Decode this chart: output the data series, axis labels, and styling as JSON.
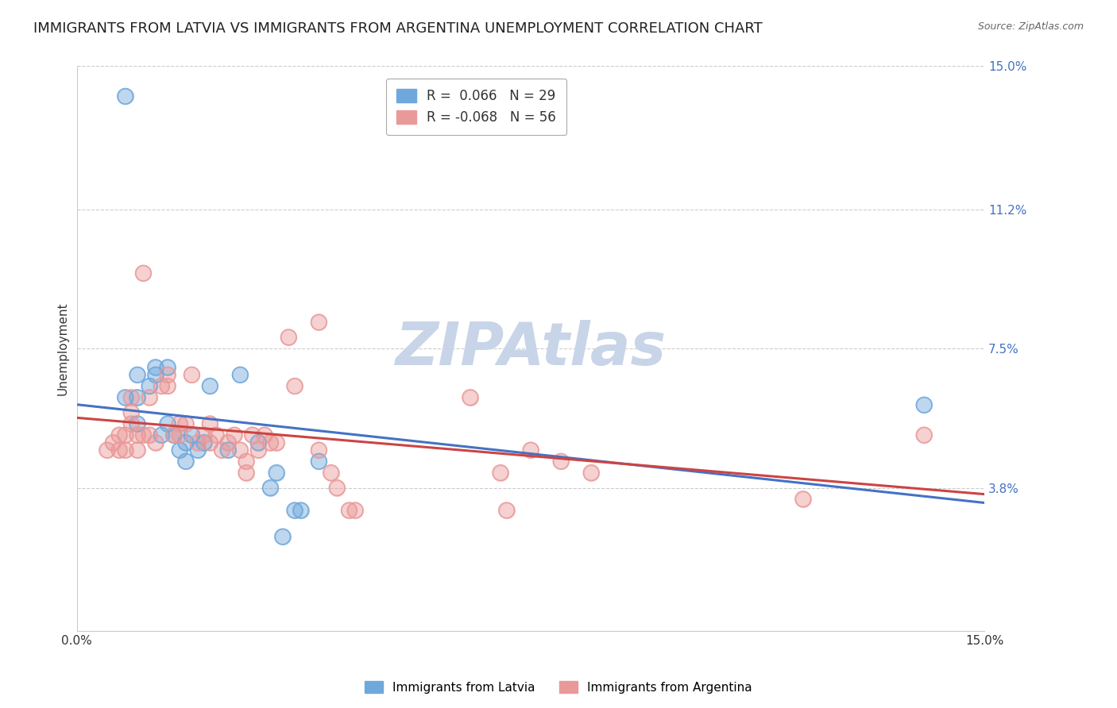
{
  "title": "IMMIGRANTS FROM LATVIA VS IMMIGRANTS FROM ARGENTINA UNEMPLOYMENT CORRELATION CHART",
  "source": "Source: ZipAtlas.com",
  "xlabel": "",
  "ylabel": "Unemployment",
  "xlim": [
    0.0,
    0.15
  ],
  "ylim": [
    0.0,
    0.15
  ],
  "ytick_values": [
    0.0,
    0.038,
    0.075,
    0.112,
    0.15
  ],
  "xtick_values": [
    0.0,
    0.15
  ],
  "right_ytick_values": [
    0.15,
    0.112,
    0.075,
    0.038
  ],
  "right_ytick_labels": [
    "15.0%",
    "11.2%",
    "7.5%",
    "3.8%"
  ],
  "latvia_color": "#6fa8dc",
  "argentina_color": "#ea9999",
  "latvia_line_color": "#4472c4",
  "argentina_line_color": "#cc4444",
  "watermark_color": "#c8d4e8",
  "background_color": "#ffffff",
  "grid_color": "#cccccc",
  "title_fontsize": 13,
  "axis_label_fontsize": 11,
  "tick_fontsize": 11,
  "right_tick_color": "#4472c4",
  "latvia_scatter": [
    [
      0.008,
      0.142
    ],
    [
      0.008,
      0.062
    ],
    [
      0.01,
      0.062
    ],
    [
      0.01,
      0.055
    ],
    [
      0.01,
      0.068
    ],
    [
      0.012,
      0.065
    ],
    [
      0.013,
      0.068
    ],
    [
      0.013,
      0.07
    ],
    [
      0.014,
      0.052
    ],
    [
      0.015,
      0.055
    ],
    [
      0.015,
      0.07
    ],
    [
      0.016,
      0.052
    ],
    [
      0.017,
      0.048
    ],
    [
      0.018,
      0.05
    ],
    [
      0.018,
      0.045
    ],
    [
      0.019,
      0.052
    ],
    [
      0.02,
      0.048
    ],
    [
      0.021,
      0.05
    ],
    [
      0.022,
      0.065
    ],
    [
      0.025,
      0.048
    ],
    [
      0.027,
      0.068
    ],
    [
      0.03,
      0.05
    ],
    [
      0.032,
      0.038
    ],
    [
      0.033,
      0.042
    ],
    [
      0.034,
      0.025
    ],
    [
      0.036,
      0.032
    ],
    [
      0.037,
      0.032
    ],
    [
      0.04,
      0.045
    ],
    [
      0.14,
      0.06
    ]
  ],
  "argentina_scatter": [
    [
      0.005,
      0.048
    ],
    [
      0.006,
      0.05
    ],
    [
      0.007,
      0.048
    ],
    [
      0.007,
      0.052
    ],
    [
      0.008,
      0.048
    ],
    [
      0.008,
      0.052
    ],
    [
      0.009,
      0.055
    ],
    [
      0.009,
      0.058
    ],
    [
      0.009,
      0.062
    ],
    [
      0.01,
      0.048
    ],
    [
      0.01,
      0.052
    ],
    [
      0.011,
      0.095
    ],
    [
      0.011,
      0.052
    ],
    [
      0.012,
      0.052
    ],
    [
      0.012,
      0.062
    ],
    [
      0.013,
      0.05
    ],
    [
      0.014,
      0.065
    ],
    [
      0.015,
      0.065
    ],
    [
      0.015,
      0.068
    ],
    [
      0.016,
      0.052
    ],
    [
      0.017,
      0.052
    ],
    [
      0.017,
      0.055
    ],
    [
      0.018,
      0.055
    ],
    [
      0.019,
      0.068
    ],
    [
      0.02,
      0.05
    ],
    [
      0.021,
      0.052
    ],
    [
      0.022,
      0.055
    ],
    [
      0.022,
      0.05
    ],
    [
      0.023,
      0.052
    ],
    [
      0.024,
      0.048
    ],
    [
      0.025,
      0.05
    ],
    [
      0.026,
      0.052
    ],
    [
      0.027,
      0.048
    ],
    [
      0.028,
      0.042
    ],
    [
      0.028,
      0.045
    ],
    [
      0.029,
      0.052
    ],
    [
      0.03,
      0.048
    ],
    [
      0.031,
      0.052
    ],
    [
      0.032,
      0.05
    ],
    [
      0.033,
      0.05
    ],
    [
      0.035,
      0.078
    ],
    [
      0.036,
      0.065
    ],
    [
      0.04,
      0.082
    ],
    [
      0.04,
      0.048
    ],
    [
      0.042,
      0.042
    ],
    [
      0.043,
      0.038
    ],
    [
      0.045,
      0.032
    ],
    [
      0.046,
      0.032
    ],
    [
      0.065,
      0.062
    ],
    [
      0.07,
      0.042
    ],
    [
      0.071,
      0.032
    ],
    [
      0.075,
      0.048
    ],
    [
      0.08,
      0.045
    ],
    [
      0.085,
      0.042
    ],
    [
      0.12,
      0.035
    ],
    [
      0.14,
      0.052
    ]
  ],
  "latvia_R": 0.066,
  "argentina_R": -0.068,
  "latvia_N": 29,
  "argentina_N": 56,
  "bottom_legend_labels": [
    "Immigrants from Latvia",
    "Immigrants from Argentina"
  ]
}
